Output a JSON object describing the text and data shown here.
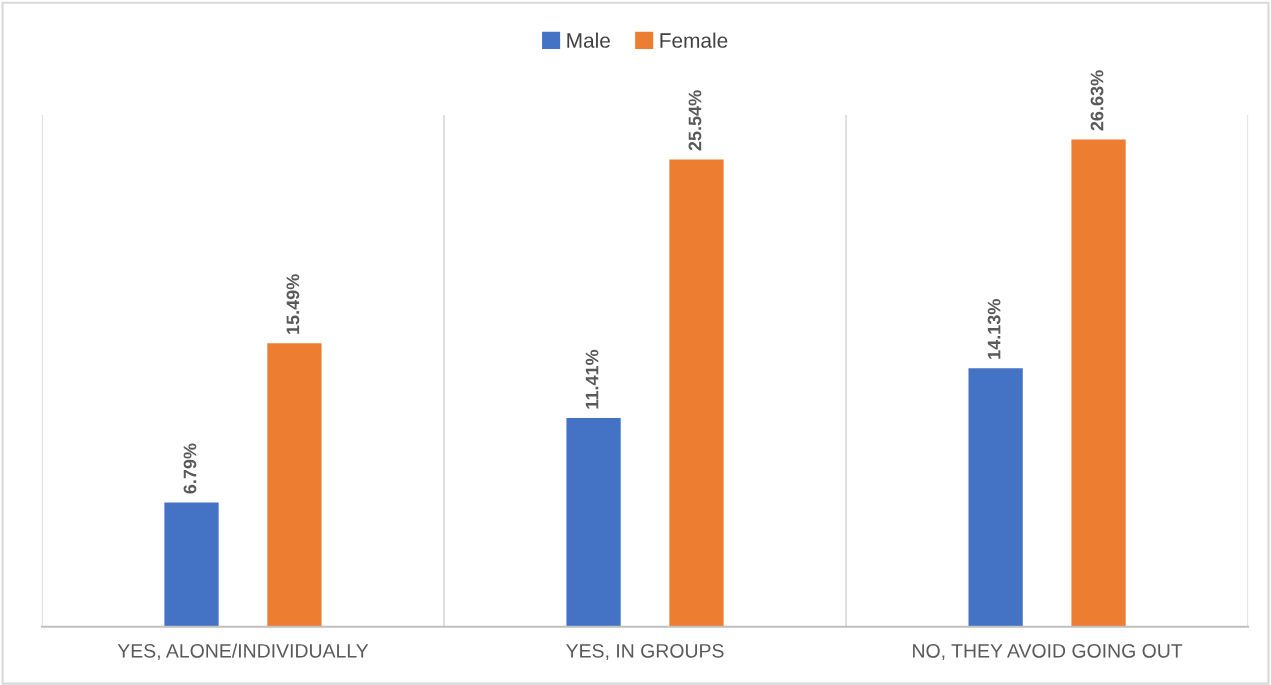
{
  "chart_data": {
    "type": "bar",
    "categories": [
      "YES, ALONE/INDIVIDUALLY",
      "YES, IN GROUPS",
      "NO, THEY AVOID GOING OUT"
    ],
    "series": [
      {
        "name": "Male",
        "color": "#4472c4",
        "values": [
          6.79,
          11.41,
          14.13
        ],
        "value_labels": [
          "6.79%",
          "11.41%",
          "14.13%"
        ]
      },
      {
        "name": "Female",
        "color": "#ed7d31",
        "values": [
          15.49,
          25.54,
          26.63
        ],
        "value_labels": [
          "15.49%",
          "25.54%",
          "26.63%"
        ]
      }
    ],
    "grid": "x",
    "legend": "top"
  }
}
